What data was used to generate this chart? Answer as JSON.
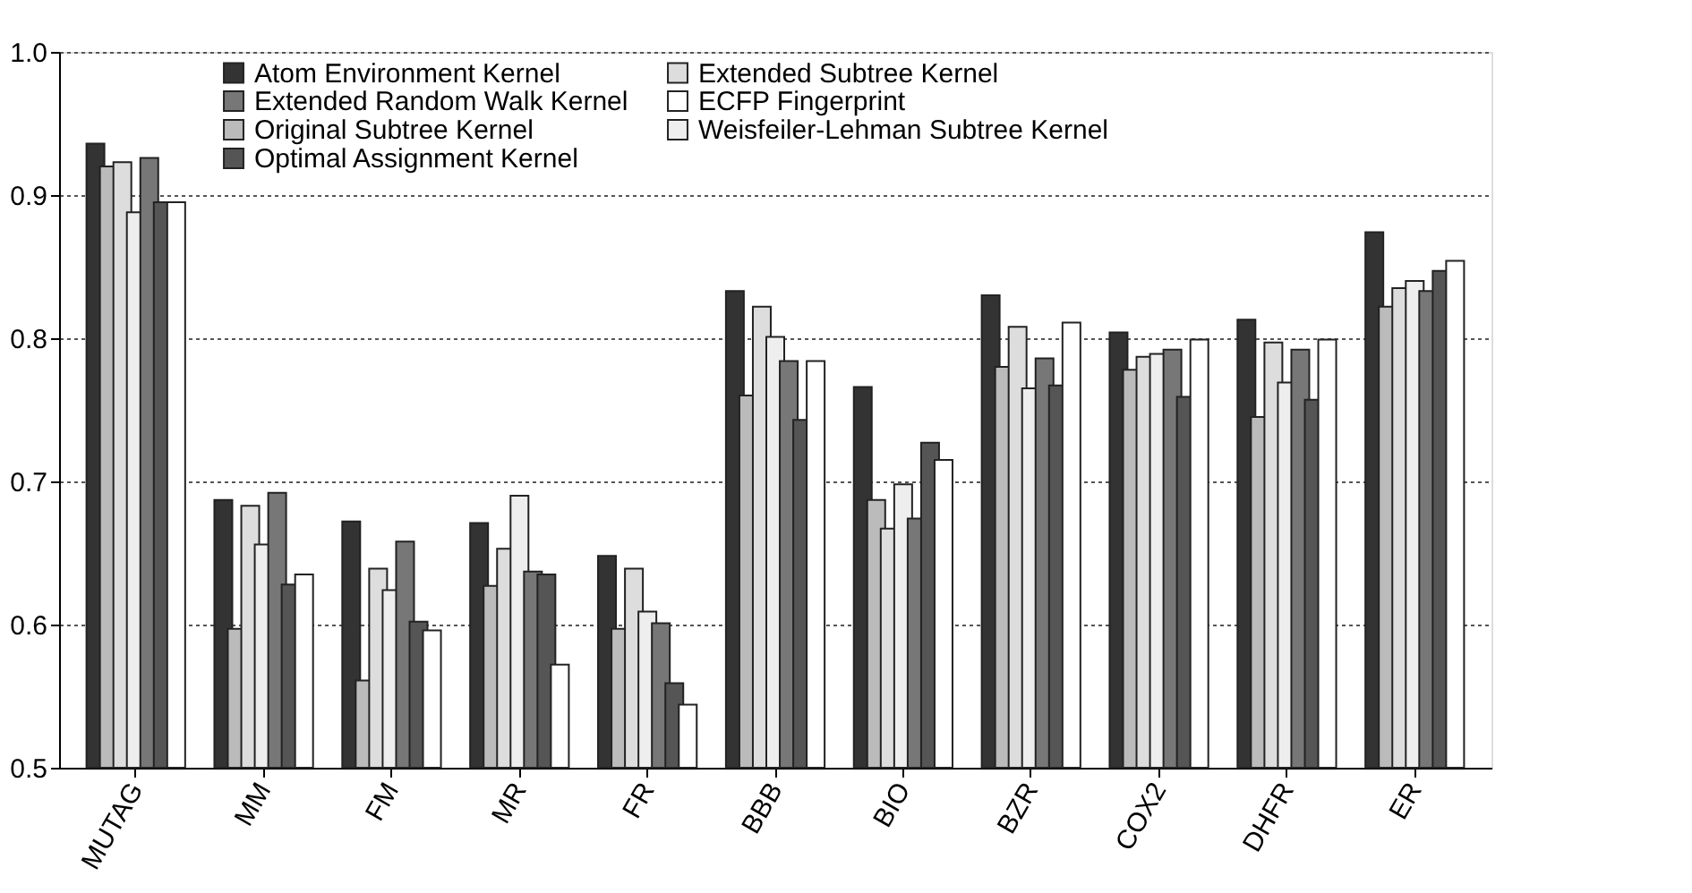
{
  "chart_data": {
    "type": "bar",
    "categories": [
      "MUTAG",
      "MM",
      "FM",
      "MR",
      "FR",
      "BBB",
      "BIO",
      "BZR",
      "COX2",
      "DHFR",
      "ER"
    ],
    "series": [
      {
        "name": "Atom Environment Kernel",
        "color": "#333333",
        "values": [
          0.936,
          0.687,
          0.672,
          0.671,
          0.648,
          0.833,
          0.766,
          0.83,
          0.804,
          0.813,
          0.874
        ]
      },
      {
        "name": "Original Subtree Kernel",
        "color": "#bbbbbb",
        "values": [
          0.92,
          0.597,
          0.561,
          0.627,
          0.597,
          0.76,
          0.687,
          0.78,
          0.778,
          0.745,
          0.822
        ]
      },
      {
        "name": "Extended Subtree Kernel",
        "color": "#dddddd",
        "values": [
          0.923,
          0.683,
          0.639,
          0.653,
          0.639,
          0.822,
          0.667,
          0.808,
          0.787,
          0.797,
          0.835
        ]
      },
      {
        "name": "Weisfeiler-Lehman Subtree Kernel",
        "color": "#eeeeee",
        "values": [
          0.888,
          0.656,
          0.624,
          0.69,
          0.609,
          0.801,
          0.698,
          0.765,
          0.789,
          0.769,
          0.84
        ]
      },
      {
        "name": "Extended Random Walk Kernel",
        "color": "#777777",
        "values": [
          0.926,
          0.692,
          0.658,
          0.637,
          0.601,
          0.784,
          0.674,
          0.786,
          0.792,
          0.792,
          0.833
        ]
      },
      {
        "name": "Optimal Assignment Kernel",
        "color": "#555555",
        "values": [
          0.895,
          0.628,
          0.602,
          0.635,
          0.559,
          0.743,
          0.727,
          0.767,
          0.759,
          0.757,
          0.847
        ]
      },
      {
        "name": "ECFP Fingerprint",
        "color": "#ffffff",
        "values": [
          0.895,
          0.635,
          0.596,
          0.572,
          0.544,
          0.784,
          0.715,
          0.811,
          0.799,
          0.799,
          0.854
        ]
      }
    ],
    "ylim": [
      0.5,
      1.0
    ],
    "yticks": [
      0.5,
      0.6,
      0.7,
      0.8,
      0.9,
      {
        "value": 1.0,
        "label": "1.0"
      }
    ],
    "grid": "y",
    "legend": "top"
  }
}
